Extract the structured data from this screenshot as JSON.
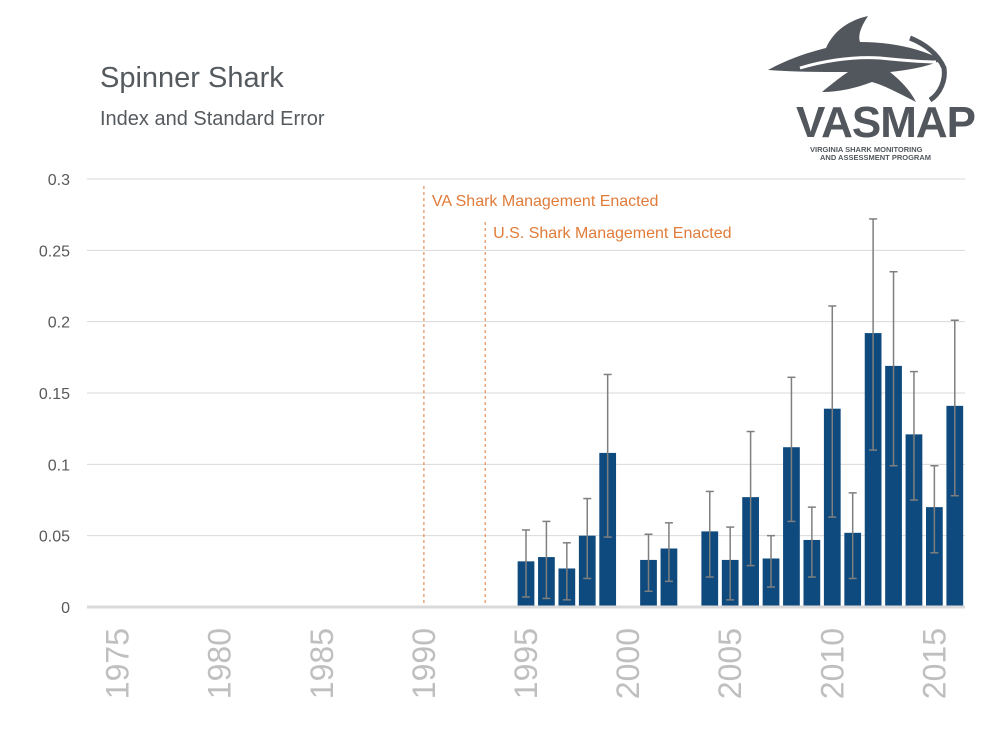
{
  "title": "Spinner Shark",
  "subtitle": "Index and Standard Error",
  "logo": {
    "name": "VASMAP",
    "tagline_line1": "Virginia Shark Monitoring",
    "tagline_line2": "and Assessment Program"
  },
  "colors": {
    "bar": "#0e4a7e",
    "error_bar": "#7f7f7f",
    "annotation": "#e07b39",
    "grid": "#d9d9d9",
    "axis_text": "#595959",
    "year_text": "#bfbfbf"
  },
  "chart_data": {
    "type": "bar",
    "title": "Spinner Shark",
    "subtitle": "Index and Standard Error",
    "x_range": [
      1974,
      2016
    ],
    "ylim": [
      0,
      0.3
    ],
    "y_ticks": [
      0,
      0.05,
      0.1,
      0.15,
      0.2,
      0.25,
      0.3
    ],
    "y_tick_labels": [
      "0",
      "0.05",
      "0.1",
      "0.15",
      "0.2",
      "0.25",
      "0.3"
    ],
    "x_tick_labels": [
      "1975",
      "1980",
      "1985",
      "1990",
      "1995",
      "2000",
      "2005",
      "2010",
      "2015"
    ],
    "x_ticks": [
      1975,
      1980,
      1985,
      1990,
      1995,
      2000,
      2005,
      2010,
      2015
    ],
    "grid": true,
    "legend": "none",
    "annotations": [
      {
        "label": "VA Shark Management Enacted",
        "x": 1990
      },
      {
        "label": "U.S. Shark Management Enacted",
        "x": 1993
      }
    ],
    "years": [
      1995,
      1996,
      1997,
      1998,
      1999,
      2001,
      2002,
      2004,
      2005,
      2006,
      2007,
      2008,
      2009,
      2010,
      2011,
      2012,
      2013,
      2014,
      2015,
      2016
    ],
    "values": [
      0.032,
      0.035,
      0.027,
      0.05,
      0.108,
      0.033,
      0.041,
      0.053,
      0.033,
      0.077,
      0.034,
      0.112,
      0.047,
      0.139,
      0.052,
      0.192,
      0.169,
      0.121,
      0.07,
      0.141
    ],
    "err_low": [
      0.007,
      0.006,
      0.005,
      0.02,
      0.049,
      0.011,
      0.018,
      0.021,
      0.005,
      0.029,
      0.014,
      0.06,
      0.021,
      0.063,
      0.02,
      0.11,
      0.099,
      0.075,
      0.038,
      0.078
    ],
    "err_high": [
      0.054,
      0.06,
      0.045,
      0.076,
      0.163,
      0.051,
      0.059,
      0.081,
      0.056,
      0.123,
      0.05,
      0.161,
      0.07,
      0.211,
      0.08,
      0.272,
      0.235,
      0.165,
      0.099,
      0.201
    ]
  }
}
